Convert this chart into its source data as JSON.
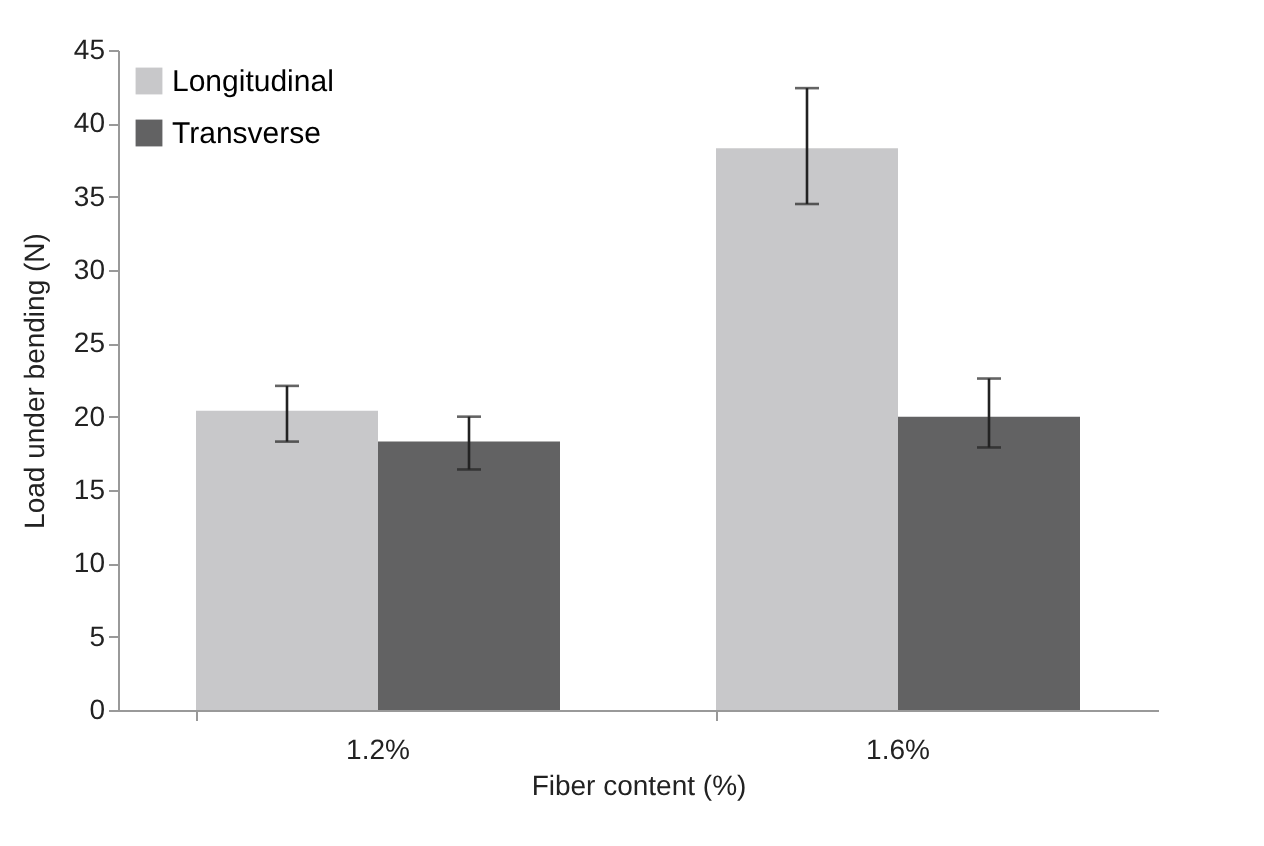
{
  "chart_data": {
    "type": "bar",
    "xlabel": "Fiber content (%)",
    "ylabel": "Load under bending (N)",
    "categories": [
      "1.2%",
      "1.6%"
    ],
    "series": [
      {
        "name": "Longitudinal",
        "color": "#c8c8ca",
        "values": [
          20.4,
          38.3
        ],
        "errors": [
          [
            18.3,
            22.1
          ],
          [
            34.5,
            42.4
          ]
        ]
      },
      {
        "name": "Transverse",
        "color": "#626263",
        "values": [
          18.3,
          20.0
        ],
        "errors": [
          [
            16.4,
            20.0
          ],
          [
            17.9,
            22.6
          ]
        ]
      }
    ],
    "ylim": [
      0,
      45
    ],
    "yticks": [
      0,
      5,
      10,
      15,
      20,
      25,
      30,
      35,
      40,
      45
    ],
    "grid": false,
    "legend": "top left"
  }
}
